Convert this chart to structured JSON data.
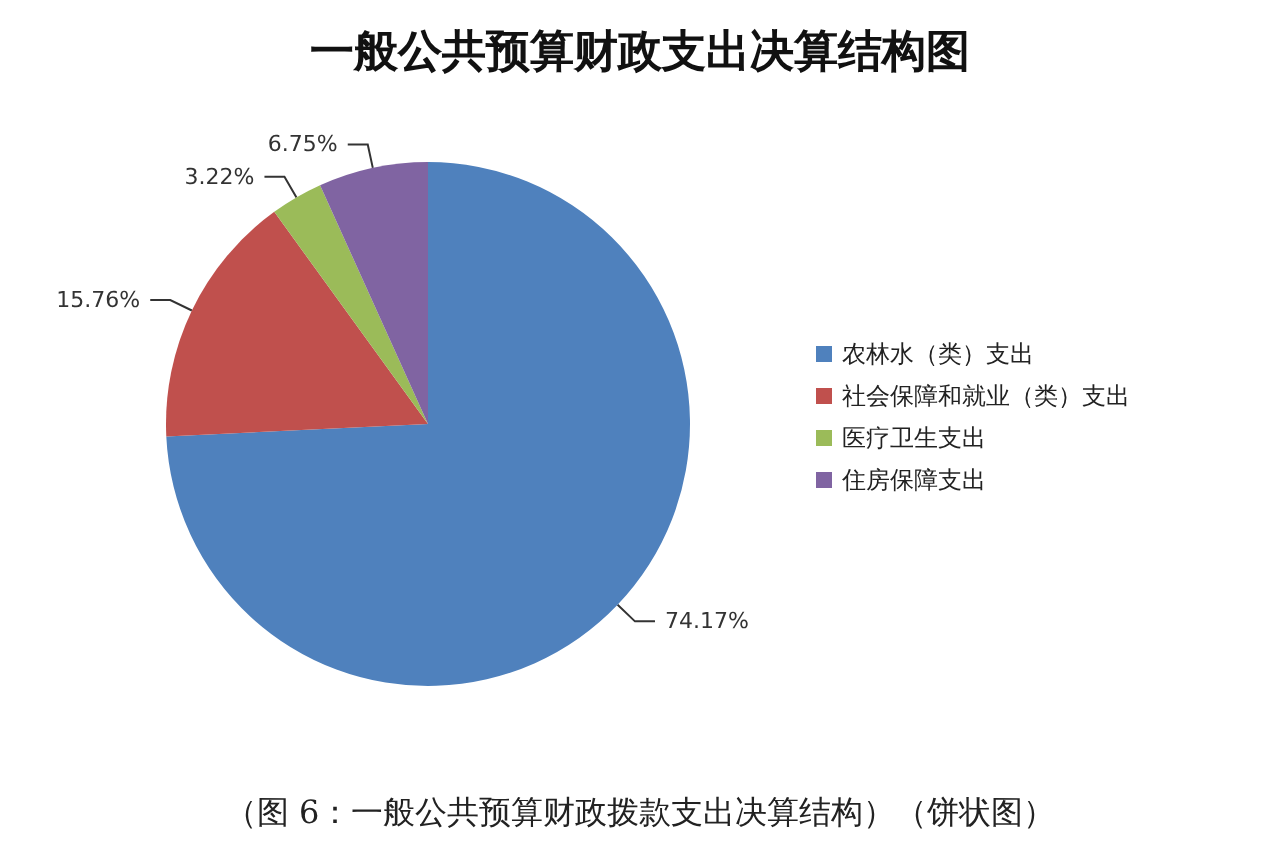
{
  "chart_data": {
    "type": "pie",
    "title": "一般公共预算财政支出决算结构图",
    "categories": [
      "农林水（类）支出",
      "社会保障和就业（类）支出",
      "医疗卫生支出",
      "住房保障支出"
    ],
    "values": [
      74.17,
      15.76,
      3.22,
      6.75
    ],
    "colors": [
      "#4f81bd",
      "#c0504d",
      "#9bbb59",
      "#8064a2"
    ],
    "value_labels": [
      "74.17%",
      "15.76%",
      "3.22%",
      "6.75%"
    ],
    "legend": "right",
    "annotations": [
      "（图 6：一般公共预算财政拨款支出决算结构）（饼状图）"
    ]
  }
}
